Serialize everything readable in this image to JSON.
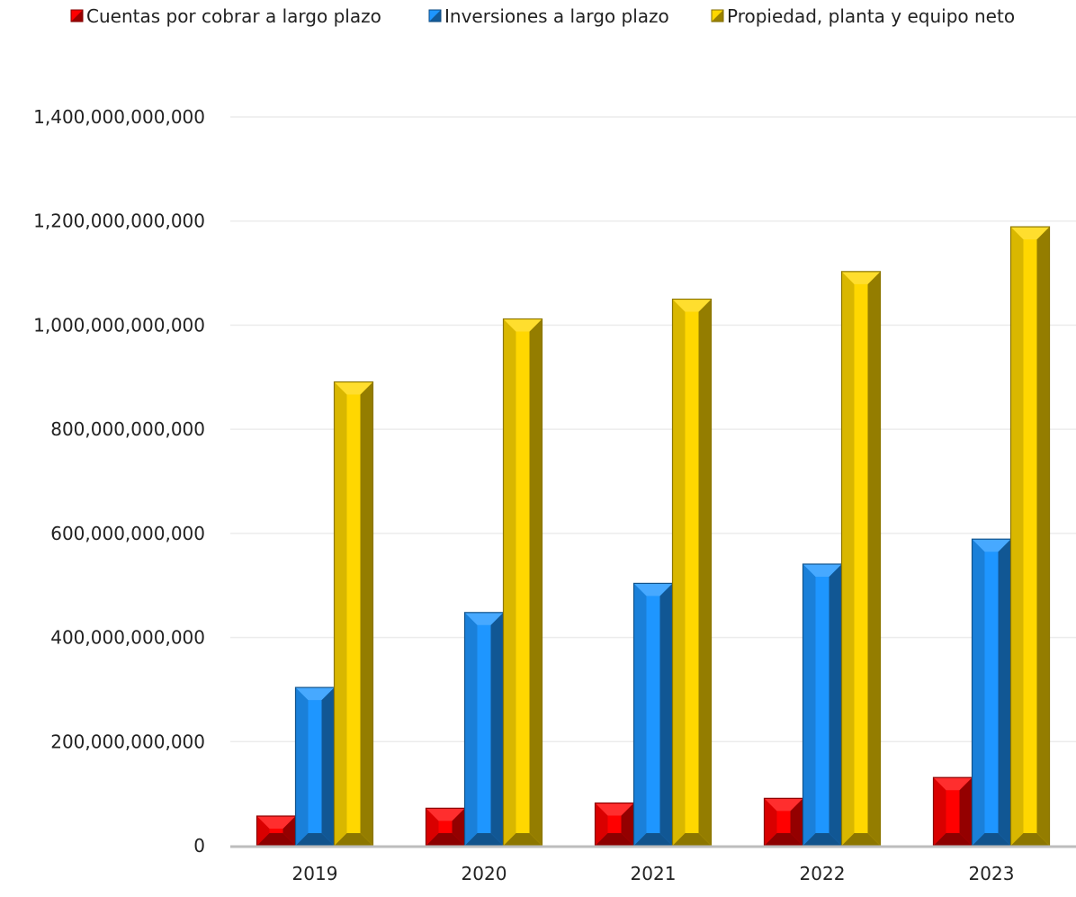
{
  "chart_data": {
    "type": "bar",
    "categories": [
      "2019",
      "2020",
      "2021",
      "2022",
      "2023"
    ],
    "series": [
      {
        "name": "Cuentas por cobrar a largo plazo",
        "color": "#ff0000",
        "values": [
          57000000000,
          72000000000,
          82000000000,
          91000000000,
          131000000000
        ]
      },
      {
        "name": "Inversiones a largo plazo",
        "color": "#1e96ff",
        "values": [
          304000000000,
          448000000000,
          504000000000,
          541000000000,
          589000000000
        ]
      },
      {
        "name": "Propiedad, planta y equipo neto",
        "color": "#ffd700",
        "values": [
          891000000000,
          1012000000000,
          1050000000000,
          1103000000000,
          1189000000000
        ]
      }
    ],
    "yticks": [
      {
        "value": 0,
        "label": "0"
      },
      {
        "value": 200000000000,
        "label": "200,000,000,000"
      },
      {
        "value": 400000000000,
        "label": "400,000,000,000"
      },
      {
        "value": 600000000000,
        "label": "600,000,000,000"
      },
      {
        "value": 800000000000,
        "label": "800,000,000,000"
      },
      {
        "value": 1000000000000,
        "label": "1,000,000,000,000"
      },
      {
        "value": 1200000000000,
        "label": "1,200,000,000,000"
      },
      {
        "value": 1400000000000,
        "label": "1,400,000,000,000"
      }
    ],
    "ylim": [
      0,
      1400000000000
    ],
    "grid": true,
    "legend_position": "top",
    "title": "",
    "xlabel": "",
    "ylabel": ""
  }
}
